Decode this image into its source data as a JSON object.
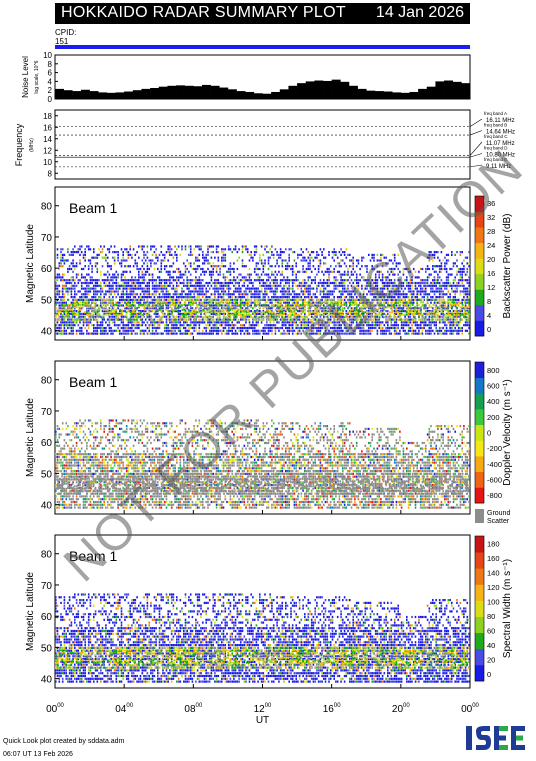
{
  "header": {
    "title": "HOKKAIDO RADAR SUMMARY PLOT",
    "date": "14 Jan 2026",
    "cpid_label": "CPID:",
    "cpid_value": "151"
  },
  "chart_data": [
    {
      "type": "bar",
      "ylabel": "Noise Level",
      "ylabel_sub": "log scale, 10^6",
      "ylim": [
        0,
        10
      ],
      "yticks": [
        "0",
        "2",
        "4",
        "6",
        "8",
        "10"
      ],
      "xlim": [
        0,
        24
      ],
      "values": [
        2.3,
        2.0,
        1.8,
        2.1,
        1.8,
        1.5,
        1.4,
        1.5,
        1.7,
        2.0,
        2.3,
        2.5,
        2.8,
        3.0,
        3.1,
        3.0,
        2.9,
        3.2,
        3.0,
        2.6,
        2.2,
        1.8,
        1.6,
        1.3,
        1.2,
        1.6,
        2.2,
        3.0,
        3.6,
        4.0,
        4.2,
        4.1,
        4.4,
        3.9,
        3.0,
        2.3,
        1.9,
        1.8,
        1.7,
        1.5,
        1.4,
        1.6,
        2.3,
        2.8,
        4.0,
        4.2,
        3.9,
        3.6
      ]
    },
    {
      "type": "scatter",
      "ylabel": "Frequency",
      "ylabel_unit": "(MHz)",
      "ylim": [
        7,
        19
      ],
      "yticks": [
        "8",
        "10",
        "12",
        "14",
        "16",
        "18"
      ],
      "bands": [
        {
          "name": "freq band A",
          "freq": "16.11 MHz"
        },
        {
          "name": "freq band B",
          "freq": "14.64 MHz"
        },
        {
          "name": "freq band C",
          "freq": "11.07 MHz"
        },
        {
          "name": "freq band D",
          "freq": "10.80 MHz"
        },
        {
          "name": "freq band E",
          "freq": "9.11 MHz"
        }
      ]
    },
    {
      "type": "heatmap",
      "label": "Beam  1",
      "ylabel": "Magnetic Latitude",
      "ylim": [
        37,
        86
      ],
      "yticks": [
        "40",
        "50",
        "60",
        "70",
        "80"
      ],
      "colorbar_label": "Backscatter Power (dB)",
      "colorbar_ticks": [
        "0",
        "4",
        "8",
        "12",
        "16",
        "20",
        "24",
        "28",
        "32",
        "36"
      ],
      "palette": [
        "#1a1ae6",
        "#4a4ae6",
        "#1eaa1e",
        "#8cd21e",
        "#dcdc14",
        "#f5b414",
        "#f07814",
        "#e64614",
        "#c81414"
      ]
    },
    {
      "type": "heatmap",
      "label": "Beam  1",
      "ylabel": "Magnetic Latitude",
      "ylim": [
        37,
        86
      ],
      "yticks": [
        "40",
        "50",
        "60",
        "70",
        "80"
      ],
      "colorbar_label": "Doppler Velocity (m s⁻¹)",
      "colorbar_ticks": [
        "-800",
        "-600",
        "-400",
        "-200",
        "0",
        "200",
        "400",
        "600",
        "800"
      ],
      "ground_scatter_label": [
        "Ground",
        "Scatter"
      ],
      "ground_scatter_color": "#8c8c8c",
      "palette": [
        "#e61414",
        "#f06414",
        "#f5aa14",
        "#f5e614",
        "#c8e614",
        "#3cc83c",
        "#14a050",
        "#1478c8",
        "#1e1edc"
      ]
    },
    {
      "type": "heatmap",
      "label": "Beam  1",
      "ylabel": "Magnetic Latitude",
      "ylim": [
        37,
        86
      ],
      "yticks": [
        "40",
        "50",
        "60",
        "70",
        "80"
      ],
      "colorbar_label": "Spectral Width (m s⁻¹)",
      "colorbar_ticks": [
        "0",
        "20",
        "40",
        "60",
        "80",
        "100",
        "120",
        "140",
        "160",
        "180"
      ],
      "palette": [
        "#1a1ae6",
        "#4a4ae6",
        "#1eaa1e",
        "#8cd21e",
        "#dcdc14",
        "#f5b414",
        "#f07814",
        "#e64614",
        "#c81414"
      ]
    }
  ],
  "time_axis": {
    "label": "UT",
    "xlim": [
      0,
      24
    ],
    "ticks": [
      [
        "00",
        "00"
      ],
      [
        "04",
        "00"
      ],
      [
        "08",
        "00"
      ],
      [
        "12",
        "00"
      ],
      [
        "16",
        "00"
      ],
      [
        "20",
        "00"
      ],
      [
        "00",
        "00"
      ]
    ]
  },
  "footer": {
    "line1": "Quick Look plot created by sddata.adm",
    "line2": "06:07 UT 13 Feb 2026"
  },
  "watermark": "NOT FOR PUBLICATION",
  "logo": {
    "text": "ISEE",
    "colors": [
      "#1e3c96",
      "#2aa84a"
    ]
  }
}
